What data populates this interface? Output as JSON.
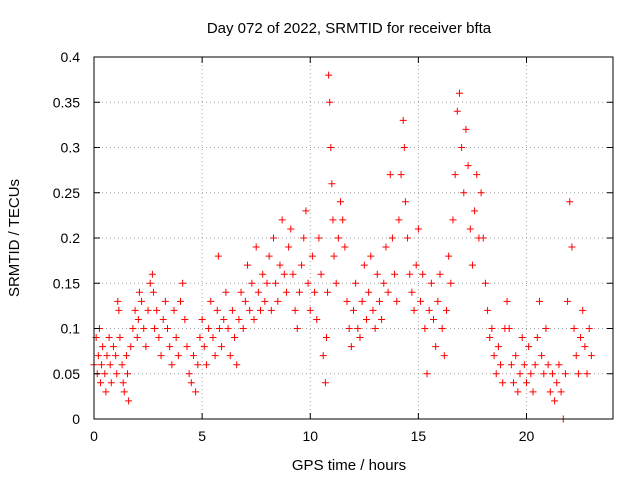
{
  "chart_data": {
    "type": "scatter",
    "title": "Day 072 of 2022, SRMTID for receiver bfta",
    "xlabel": "GPS time / hours",
    "ylabel": "SRMTID / TECUs",
    "xlim": [
      0,
      24
    ],
    "ylim": [
      0,
      0.4
    ],
    "x_ticks": [
      0,
      5,
      10,
      15,
      20
    ],
    "y_ticks": [
      0,
      0.05,
      0.1,
      0.15,
      0.2,
      0.25,
      0.3,
      0.35,
      0.4
    ],
    "x_tick_labels": [
      "0",
      "5",
      "10",
      "15",
      "20"
    ],
    "y_tick_labels": [
      "0",
      "0.05",
      "0.1",
      "0.15",
      "0.2",
      "0.25",
      "0.3",
      "0.35",
      "0.4"
    ],
    "grid": true,
    "marker": "+",
    "series": [
      {
        "color": "#ff0000",
        "points": [
          [
            0.0,
            0.06
          ],
          [
            0.1,
            0.09
          ],
          [
            0.15,
            0.05
          ],
          [
            0.2,
            0.07
          ],
          [
            0.25,
            0.1
          ],
          [
            0.3,
            0.04
          ],
          [
            0.35,
            0.06
          ],
          [
            0.4,
            0.08
          ],
          [
            0.5,
            0.05
          ],
          [
            0.55,
            0.03
          ],
          [
            0.6,
            0.07
          ],
          [
            0.7,
            0.09
          ],
          [
            0.75,
            0.06
          ],
          [
            0.8,
            0.04
          ],
          [
            0.9,
            0.08
          ],
          [
            1.0,
            0.07
          ],
          [
            1.05,
            0.05
          ],
          [
            1.1,
            0.13
          ],
          [
            1.15,
            0.12
          ],
          [
            1.2,
            0.09
          ],
          [
            1.3,
            0.06
          ],
          [
            1.35,
            0.04
          ],
          [
            1.4,
            0.03
          ],
          [
            1.5,
            0.07
          ],
          [
            1.55,
            0.05
          ],
          [
            1.6,
            0.02
          ],
          [
            1.7,
            0.08
          ],
          [
            1.8,
            0.1
          ],
          [
            1.9,
            0.12
          ],
          [
            2.0,
            0.09
          ],
          [
            2.05,
            0.11
          ],
          [
            2.1,
            0.14
          ],
          [
            2.2,
            0.13
          ],
          [
            2.3,
            0.1
          ],
          [
            2.4,
            0.08
          ],
          [
            2.5,
            0.12
          ],
          [
            2.6,
            0.15
          ],
          [
            2.7,
            0.16
          ],
          [
            2.75,
            0.14
          ],
          [
            2.8,
            0.1
          ],
          [
            2.9,
            0.12
          ],
          [
            3.0,
            0.09
          ],
          [
            3.1,
            0.07
          ],
          [
            3.2,
            0.11
          ],
          [
            3.3,
            0.13
          ],
          [
            3.4,
            0.1
          ],
          [
            3.5,
            0.08
          ],
          [
            3.6,
            0.06
          ],
          [
            3.7,
            0.12
          ],
          [
            3.8,
            0.09
          ],
          [
            3.9,
            0.07
          ],
          [
            4.0,
            0.13
          ],
          [
            4.1,
            0.15
          ],
          [
            4.2,
            0.11
          ],
          [
            4.3,
            0.08
          ],
          [
            4.4,
            0.05
          ],
          [
            4.5,
            0.04
          ],
          [
            4.6,
            0.07
          ],
          [
            4.7,
            0.03
          ],
          [
            4.8,
            0.06
          ],
          [
            4.9,
            0.09
          ],
          [
            5.0,
            0.11
          ],
          [
            5.1,
            0.08
          ],
          [
            5.2,
            0.06
          ],
          [
            5.3,
            0.1
          ],
          [
            5.4,
            0.13
          ],
          [
            5.5,
            0.09
          ],
          [
            5.6,
            0.07
          ],
          [
            5.7,
            0.12
          ],
          [
            5.75,
            0.18
          ],
          [
            5.8,
            0.1
          ],
          [
            5.9,
            0.08
          ],
          [
            6.0,
            0.11
          ],
          [
            6.1,
            0.14
          ],
          [
            6.2,
            0.1
          ],
          [
            6.3,
            0.07
          ],
          [
            6.4,
            0.12
          ],
          [
            6.5,
            0.09
          ],
          [
            6.6,
            0.06
          ],
          [
            6.7,
            0.11
          ],
          [
            6.8,
            0.14
          ],
          [
            6.9,
            0.1
          ],
          [
            7.0,
            0.13
          ],
          [
            7.1,
            0.17
          ],
          [
            7.2,
            0.12
          ],
          [
            7.3,
            0.15
          ],
          [
            7.4,
            0.11
          ],
          [
            7.5,
            0.19
          ],
          [
            7.6,
            0.14
          ],
          [
            7.7,
            0.12
          ],
          [
            7.8,
            0.16
          ],
          [
            7.9,
            0.13
          ],
          [
            8.0,
            0.15
          ],
          [
            8.1,
            0.18
          ],
          [
            8.2,
            0.12
          ],
          [
            8.3,
            0.2
          ],
          [
            8.4,
            0.15
          ],
          [
            8.5,
            0.13
          ],
          [
            8.6,
            0.17
          ],
          [
            8.7,
            0.22
          ],
          [
            8.8,
            0.16
          ],
          [
            8.9,
            0.14
          ],
          [
            9.0,
            0.19
          ],
          [
            9.1,
            0.21
          ],
          [
            9.2,
            0.16
          ],
          [
            9.3,
            0.12
          ],
          [
            9.4,
            0.1
          ],
          [
            9.5,
            0.14
          ],
          [
            9.6,
            0.17
          ],
          [
            9.7,
            0.2
          ],
          [
            9.8,
            0.23
          ],
          [
            9.9,
            0.15
          ],
          [
            10.0,
            0.12
          ],
          [
            10.1,
            0.18
          ],
          [
            10.2,
            0.14
          ],
          [
            10.3,
            0.11
          ],
          [
            10.4,
            0.2
          ],
          [
            10.5,
            0.16
          ],
          [
            10.6,
            0.07
          ],
          [
            10.7,
            0.04
          ],
          [
            10.75,
            0.09
          ],
          [
            10.8,
            0.14
          ],
          [
            10.85,
            0.38
          ],
          [
            10.9,
            0.35
          ],
          [
            10.95,
            0.3
          ],
          [
            11.0,
            0.26
          ],
          [
            11.05,
            0.22
          ],
          [
            11.1,
            0.18
          ],
          [
            11.2,
            0.15
          ],
          [
            11.3,
            0.2
          ],
          [
            11.4,
            0.24
          ],
          [
            11.5,
            0.22
          ],
          [
            11.6,
            0.19
          ],
          [
            11.7,
            0.13
          ],
          [
            11.8,
            0.1
          ],
          [
            11.9,
            0.08
          ],
          [
            12.0,
            0.12
          ],
          [
            12.1,
            0.15
          ],
          [
            12.2,
            0.1
          ],
          [
            12.3,
            0.09
          ],
          [
            12.4,
            0.13
          ],
          [
            12.5,
            0.17
          ],
          [
            12.6,
            0.11
          ],
          [
            12.7,
            0.14
          ],
          [
            12.8,
            0.18
          ],
          [
            12.9,
            0.12
          ],
          [
            13.0,
            0.1
          ],
          [
            13.1,
            0.16
          ],
          [
            13.2,
            0.13
          ],
          [
            13.3,
            0.11
          ],
          [
            13.4,
            0.15
          ],
          [
            13.5,
            0.19
          ],
          [
            13.6,
            0.14
          ],
          [
            13.7,
            0.27
          ],
          [
            13.8,
            0.2
          ],
          [
            13.9,
            0.16
          ],
          [
            14.0,
            0.13
          ],
          [
            14.1,
            0.22
          ],
          [
            14.2,
            0.27
          ],
          [
            14.3,
            0.33
          ],
          [
            14.35,
            0.3
          ],
          [
            14.4,
            0.24
          ],
          [
            14.5,
            0.2
          ],
          [
            14.6,
            0.16
          ],
          [
            14.7,
            0.14
          ],
          [
            14.8,
            0.12
          ],
          [
            14.9,
            0.17
          ],
          [
            15.0,
            0.21
          ],
          [
            15.1,
            0.13
          ],
          [
            15.2,
            0.16
          ],
          [
            15.3,
            0.1
          ],
          [
            15.4,
            0.05
          ],
          [
            15.5,
            0.12
          ],
          [
            15.6,
            0.15
          ],
          [
            15.7,
            0.11
          ],
          [
            15.8,
            0.08
          ],
          [
            15.9,
            0.13
          ],
          [
            16.0,
            0.16
          ],
          [
            16.1,
            0.1
          ],
          [
            16.2,
            0.07
          ],
          [
            16.3,
            0.12
          ],
          [
            16.4,
            0.18
          ],
          [
            16.5,
            0.15
          ],
          [
            16.6,
            0.22
          ],
          [
            16.7,
            0.27
          ],
          [
            16.8,
            0.34
          ],
          [
            16.9,
            0.36
          ],
          [
            17.0,
            0.3
          ],
          [
            17.1,
            0.25
          ],
          [
            17.2,
            0.32
          ],
          [
            17.3,
            0.28
          ],
          [
            17.4,
            0.21
          ],
          [
            17.5,
            0.17
          ],
          [
            17.6,
            0.23
          ],
          [
            17.7,
            0.27
          ],
          [
            17.8,
            0.2
          ],
          [
            17.9,
            0.25
          ],
          [
            18.0,
            0.2
          ],
          [
            18.1,
            0.15
          ],
          [
            18.2,
            0.12
          ],
          [
            18.3,
            0.09
          ],
          [
            18.4,
            0.1
          ],
          [
            18.5,
            0.07
          ],
          [
            18.6,
            0.05
          ],
          [
            18.7,
            0.08
          ],
          [
            18.8,
            0.06
          ],
          [
            18.9,
            0.04
          ],
          [
            19.0,
            0.1
          ],
          [
            19.1,
            0.13
          ],
          [
            19.2,
            0.1
          ],
          [
            19.3,
            0.06
          ],
          [
            19.4,
            0.04
          ],
          [
            19.5,
            0.07
          ],
          [
            19.6,
            0.03
          ],
          [
            19.7,
            0.05
          ],
          [
            19.8,
            0.09
          ],
          [
            19.9,
            0.06
          ],
          [
            20.0,
            0.04
          ],
          [
            20.1,
            0.08
          ],
          [
            20.2,
            0.05
          ],
          [
            20.3,
            0.03
          ],
          [
            20.4,
            0.06
          ],
          [
            20.5,
            0.09
          ],
          [
            20.6,
            0.13
          ],
          [
            20.7,
            0.07
          ],
          [
            20.8,
            0.05
          ],
          [
            20.9,
            0.1
          ],
          [
            21.0,
            0.06
          ],
          [
            21.1,
            0.03
          ],
          [
            21.2,
            0.05
          ],
          [
            21.3,
            0.02
          ],
          [
            21.4,
            0.04
          ],
          [
            21.5,
            0.06
          ],
          [
            21.6,
            0.03
          ],
          [
            21.7,
            0.0
          ],
          [
            21.8,
            0.05
          ],
          [
            21.9,
            0.13
          ],
          [
            22.0,
            0.24
          ],
          [
            22.1,
            0.19
          ],
          [
            22.2,
            0.1
          ],
          [
            22.3,
            0.07
          ],
          [
            22.4,
            0.05
          ],
          [
            22.5,
            0.09
          ],
          [
            22.6,
            0.12
          ],
          [
            22.7,
            0.08
          ],
          [
            22.8,
            0.05
          ],
          [
            22.9,
            0.1
          ],
          [
            23.0,
            0.07
          ]
        ]
      }
    ]
  }
}
